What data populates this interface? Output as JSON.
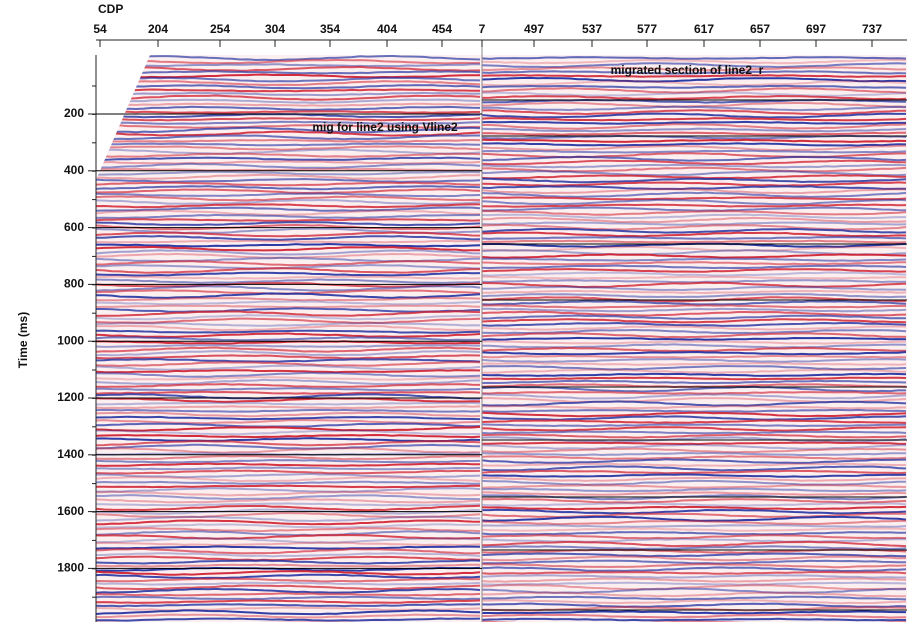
{
  "axes": {
    "x_label": "CDP",
    "y_label": "Time (ms)",
    "x_ticks_left": [
      "54",
      "204",
      "254",
      "304",
      "354",
      "404",
      "454",
      "7"
    ],
    "x_ticks_right": [
      "497",
      "537",
      "577",
      "617",
      "657",
      "697",
      "737"
    ],
    "y_ticks": [
      200,
      400,
      600,
      800,
      1000,
      1200,
      1400,
      1600,
      1800
    ]
  },
  "panels": [
    {
      "label": "mig for line2 using Vline2"
    },
    {
      "label": "migrated section of line2_r"
    }
  ]
}
